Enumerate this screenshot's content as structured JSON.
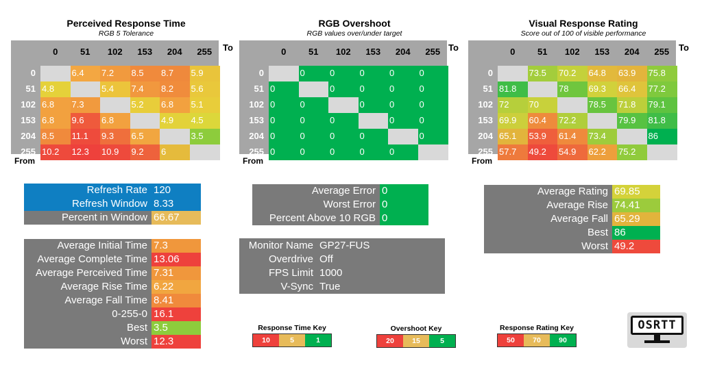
{
  "heatmaps": [
    {
      "title": "Perceived Response Time",
      "subtitle": "RGB 5 Tolerance",
      "to_label": "To",
      "from_label": "From",
      "col_headers": [
        "0",
        "51",
        "102",
        "153",
        "204",
        "255"
      ],
      "row_headers": [
        "0",
        "51",
        "102",
        "153",
        "204",
        "255"
      ],
      "values": [
        [
          null,
          "6.4",
          "7.2",
          "8.5",
          "8.7",
          "5.9"
        ],
        [
          "4.8",
          null,
          "5.4",
          "7.4",
          "8.2",
          "5.6"
        ],
        [
          "6.8",
          "7.3",
          null,
          "5.2",
          "6.8",
          "5.1"
        ],
        [
          "6.8",
          "9.6",
          "6.8",
          null,
          "4.9",
          "4.5"
        ],
        [
          "8.5",
          "11.1",
          "9.3",
          "6.5",
          null,
          "3.5"
        ],
        [
          "10.2",
          "12.3",
          "10.9",
          "9.2",
          "6",
          null
        ]
      ],
      "colors": [
        [
          null,
          "#f3a742",
          "#f19a3e",
          "#f08a3c",
          "#ef893c",
          "#e9c43b"
        ],
        [
          "#e5d13a",
          null,
          "#ecc43b",
          "#f1983e",
          "#f08c3c",
          "#e9c83b"
        ],
        [
          "#f2a13f",
          "#f19a3e",
          null,
          "#e8cd3a",
          "#f2a13f",
          "#e8cd3a"
        ],
        [
          "#f2a13f",
          "#ef5a3c",
          "#f2a13f",
          null,
          "#e3d23a",
          "#dcd73a"
        ],
        [
          "#f08a3c",
          "#ee4b3c",
          "#ef6f3c",
          "#f1a640",
          null,
          "#8dcc3c"
        ],
        [
          "#ee4a3c",
          "#ee413c",
          "#ee4a3c",
          "#ee623c",
          "#e5bb3c",
          null
        ]
      ]
    },
    {
      "title": "RGB Overshoot",
      "subtitle": "RGB values over/under target",
      "to_label": "To",
      "from_label": "From",
      "col_headers": [
        "0",
        "51",
        "102",
        "153",
        "204",
        "255"
      ],
      "row_headers": [
        "0",
        "51",
        "102",
        "153",
        "204",
        "255"
      ],
      "values": [
        [
          null,
          "0",
          "0",
          "0",
          "0",
          "0"
        ],
        [
          "0",
          null,
          "0",
          "0",
          "0",
          "0"
        ],
        [
          "0",
          "0",
          null,
          "0",
          "0",
          "0"
        ],
        [
          "0",
          "0",
          "0",
          null,
          "0",
          "0"
        ],
        [
          "0",
          "0",
          "0",
          "0",
          null,
          "0"
        ],
        [
          "0",
          "0",
          "0",
          "0",
          "0",
          null
        ]
      ],
      "colors": [
        [
          null,
          "#00b050",
          "#00b050",
          "#00b050",
          "#00b050",
          "#00b050"
        ],
        [
          "#00b050",
          null,
          "#00b050",
          "#00b050",
          "#00b050",
          "#00b050"
        ],
        [
          "#00b050",
          "#00b050",
          null,
          "#00b050",
          "#00b050",
          "#00b050"
        ],
        [
          "#00b050",
          "#00b050",
          "#00b050",
          null,
          "#00b050",
          "#00b050"
        ],
        [
          "#00b050",
          "#00b050",
          "#00b050",
          "#00b050",
          null,
          "#00b050"
        ],
        [
          "#00b050",
          "#00b050",
          "#00b050",
          "#00b050",
          "#00b050",
          null
        ]
      ]
    },
    {
      "title": "Visual Response Rating",
      "subtitle": "Score out of 100 of visible performance",
      "to_label": "To",
      "from_label": "From",
      "col_headers": [
        "0",
        "51",
        "102",
        "153",
        "204",
        "255"
      ],
      "row_headers": [
        "0",
        "51",
        "102",
        "153",
        "204",
        "255"
      ],
      "values": [
        [
          null,
          "73.5",
          "70.2",
          "64.8",
          "63.9",
          "75.8"
        ],
        [
          "81.8",
          null,
          "78",
          "69.3",
          "66.4",
          "77.2"
        ],
        [
          "72",
          "70",
          null,
          "78.5",
          "71.8",
          "79.1"
        ],
        [
          "69.9",
          "60.4",
          "72.2",
          null,
          "79.9",
          "81.8"
        ],
        [
          "65.1",
          "53.9",
          "61.4",
          "73.4",
          null,
          "86"
        ],
        [
          "57.7",
          "49.2",
          "54.9",
          "62.2",
          "75.2",
          null
        ]
      ],
      "colors": [
        [
          null,
          "#a3cd3c",
          "#c4d13b",
          "#e2b93c",
          "#e3b43c",
          "#8fcb3c"
        ],
        [
          "#3fbd47",
          null,
          "#6fc63e",
          "#d1d13b",
          "#dfc43b",
          "#7fc93d"
        ],
        [
          "#b6cf3b",
          "#c8d13b",
          null,
          "#68c43f",
          "#bccf3b",
          "#5ec340"
        ],
        [
          "#cccf3b",
          "#ee8b3c",
          "#b0ce3b",
          null,
          "#57c242",
          "#3fbd47"
        ],
        [
          "#e2b43c",
          "#ef5f3c",
          "#ef8a3c",
          "#9ecc3c",
          null,
          "#00b050"
        ],
        [
          "#ee7a3c",
          "#ee4a3c",
          "#ee6a3c",
          "#ed9f3c",
          "#90cb3c",
          null
        ]
      ]
    }
  ],
  "refresh_panel": {
    "rows": [
      {
        "label": "Refresh Rate",
        "value": "120",
        "label_bg": "#0f7fc2",
        "value_bg": "#0f7fc2"
      },
      {
        "label": "Refresh Window",
        "value": "8.33",
        "label_bg": "#0f7fc2",
        "value_bg": "#0f7fc2"
      },
      {
        "label": "Percent in Window",
        "value": "66.67",
        "label_bg": "#7a7a7a",
        "value_bg": "#e7bb5a"
      }
    ]
  },
  "error_panel": {
    "rows": [
      {
        "label": "Average Error",
        "value": "0",
        "label_bg": "#7a7a7a",
        "value_bg": "#00b050"
      },
      {
        "label": "Worst Error",
        "value": "0",
        "label_bg": "#7a7a7a",
        "value_bg": "#00b050"
      },
      {
        "label": "Percent Above 10 RGB",
        "value": "0",
        "label_bg": "#7a7a7a",
        "value_bg": "#00b050"
      }
    ]
  },
  "rating_panel": {
    "rows": [
      {
        "label": "Average Rating",
        "value": "69.85",
        "label_bg": "#7a7a7a",
        "value_bg": "#d4d23a"
      },
      {
        "label": "Average Rise",
        "value": "74.41",
        "label_bg": "#7a7a7a",
        "value_bg": "#9ccb3c"
      },
      {
        "label": "Average Fall",
        "value": "65.29",
        "label_bg": "#7a7a7a",
        "value_bg": "#e2b43c"
      },
      {
        "label": "Best",
        "value": "86",
        "label_bg": "#7a7a7a",
        "value_bg": "#00b050"
      },
      {
        "label": "Worst",
        "value": "49.2",
        "label_bg": "#7a7a7a",
        "value_bg": "#ee4a3c"
      }
    ]
  },
  "timing_panel": {
    "rows": [
      {
        "label": "Average Initial Time",
        "value": "7.3",
        "label_bg": "#7a7a7a",
        "value_bg": "#f0973c"
      },
      {
        "label": "Average Complete Time",
        "value": "13.06",
        "label_bg": "#7a7a7a",
        "value_bg": "#ee413c"
      },
      {
        "label": "Average Perceived Time",
        "value": "7.31",
        "label_bg": "#7a7a7a",
        "value_bg": "#f0973c"
      },
      {
        "label": "Average Rise Time",
        "value": "6.22",
        "label_bg": "#7a7a7a",
        "value_bg": "#f1a640"
      },
      {
        "label": "Average Fall Time",
        "value": "8.41",
        "label_bg": "#7a7a7a",
        "value_bg": "#f08a3c"
      },
      {
        "label": "0-255-0",
        "value": "16.1",
        "label_bg": "#7a7a7a",
        "value_bg": "#ee413c"
      },
      {
        "label": "Best",
        "value": "3.5",
        "label_bg": "#7a7a7a",
        "value_bg": "#8dcc3c"
      },
      {
        "label": "Worst",
        "value": "12.3",
        "label_bg": "#7a7a7a",
        "value_bg": "#ee413c"
      }
    ]
  },
  "monitor_panel": {
    "rows": [
      {
        "label": "Monitor Name",
        "value": "GP27-FUS"
      },
      {
        "label": "Overdrive",
        "value": "Off"
      },
      {
        "label": "FPS Limit",
        "value": "1000"
      },
      {
        "label": "V-Sync",
        "value": "True"
      }
    ],
    "bg": "#7a7a7a"
  },
  "keys": [
    {
      "title": "Response Time Key",
      "cells": [
        {
          "label": "10",
          "color": "#ee413c"
        },
        {
          "label": "5",
          "color": "#e7bb5a"
        },
        {
          "label": "1",
          "color": "#00b050"
        }
      ]
    },
    {
      "title": "Overshoot Key",
      "cells": [
        {
          "label": "20",
          "color": "#ee413c"
        },
        {
          "label": "15",
          "color": "#e7bb5a"
        },
        {
          "label": "5",
          "color": "#00b050"
        }
      ]
    },
    {
      "title": "Response Rating Key",
      "cells": [
        {
          "label": "50",
          "color": "#ee413c"
        },
        {
          "label": "70",
          "color": "#e7bb5a"
        },
        {
          "label": "90",
          "color": "#00b050"
        }
      ]
    }
  ],
  "logo": {
    "text": "OSRTT",
    "icon": "monitor-logo-icon"
  }
}
